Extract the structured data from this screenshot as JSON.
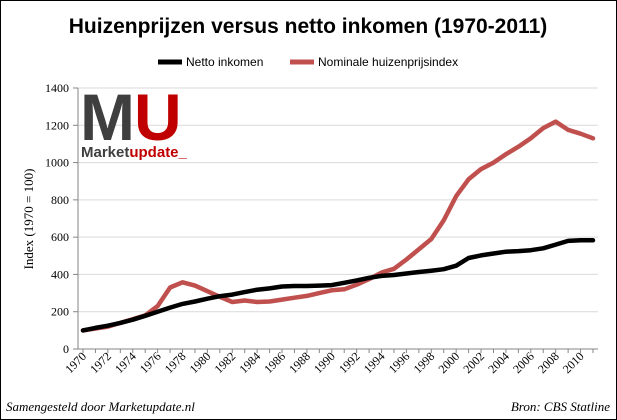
{
  "logo": {
    "letter_m": "M",
    "letter_u": "U",
    "word_market": "Market",
    "word_update": "update",
    "underscore": "_"
  },
  "footer": {
    "left": "Samengesteld door Marketupdate.nl",
    "right": "Bron: CBS Statline"
  },
  "colors": {
    "netto": "#000000",
    "huizen": "#c0504d",
    "logo_dark": "#3f3f3f",
    "logo_red": "#c00000",
    "grid": "#d9d9d9",
    "axis": "#868686",
    "border": "#000000"
  },
  "chart_data": {
    "type": "line",
    "title": "Huizenprijzen versus netto inkomen (1970-2011)",
    "xlabel": "",
    "ylabel": "Index (1970 = 100)",
    "ylim": [
      0,
      1400
    ],
    "yticks": [
      0,
      200,
      400,
      600,
      800,
      1000,
      1200,
      1400
    ],
    "xlim": [
      1970,
      2011
    ],
    "xticks": [
      1970,
      1972,
      1974,
      1976,
      1978,
      1980,
      1982,
      1984,
      1986,
      1988,
      1990,
      1992,
      1994,
      1996,
      1998,
      2000,
      2002,
      2004,
      2006,
      2008,
      2010
    ],
    "grid": "horizontal",
    "legend_position": "top",
    "x": [
      1970,
      1971,
      1972,
      1973,
      1974,
      1975,
      1976,
      1977,
      1978,
      1979,
      1980,
      1981,
      1982,
      1983,
      1984,
      1985,
      1986,
      1987,
      1988,
      1989,
      1990,
      1991,
      1992,
      1993,
      1994,
      1995,
      1996,
      1997,
      1998,
      1999,
      2000,
      2001,
      2002,
      2003,
      2004,
      2005,
      2006,
      2007,
      2008,
      2009,
      2010,
      2011
    ],
    "series": [
      {
        "name": "Netto inkomen",
        "color": "#000000",
        "values": [
          100,
          113,
          125,
          140,
          157,
          178,
          200,
          222,
          242,
          255,
          270,
          283,
          292,
          305,
          318,
          325,
          335,
          338,
          338,
          340,
          343,
          355,
          368,
          382,
          392,
          397,
          405,
          413,
          420,
          428,
          447,
          488,
          502,
          512,
          522,
          525,
          530,
          540,
          560,
          580,
          583,
          583
        ]
      },
      {
        "name": "Nominale huizenprijsindex",
        "color": "#c0504d",
        "values": [
          100,
          110,
          120,
          140,
          160,
          180,
          230,
          330,
          358,
          340,
          310,
          280,
          252,
          260,
          252,
          255,
          265,
          275,
          285,
          300,
          315,
          320,
          345,
          375,
          410,
          430,
          480,
          535,
          590,
          690,
          820,
          910,
          965,
          1000,
          1045,
          1085,
          1130,
          1185,
          1220,
          1175,
          1155,
          1130
        ]
      }
    ]
  }
}
